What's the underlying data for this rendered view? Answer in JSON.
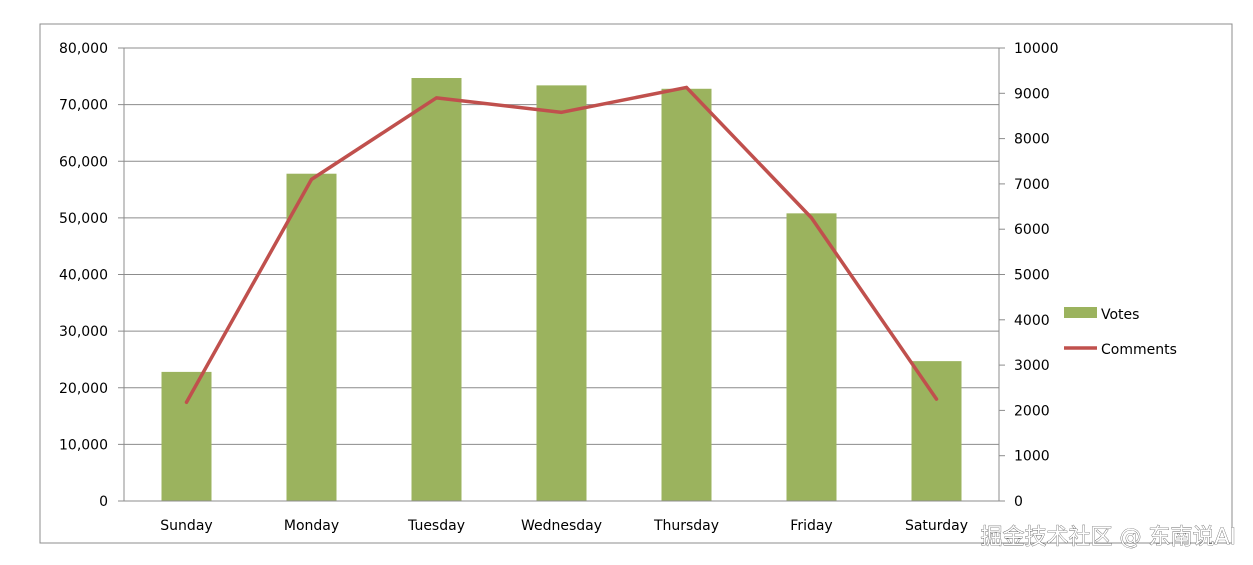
{
  "chart_data": {
    "type": "bar",
    "categories": [
      "Sunday",
      "Monday",
      "Tuesday",
      "Wednesday",
      "Thursday",
      "Friday",
      "Saturday"
    ],
    "series": [
      {
        "name": "Votes",
        "type": "bar",
        "axis": "left",
        "color": "#9BB35E",
        "values": [
          22800,
          57800,
          74700,
          73400,
          72800,
          50800,
          24700
        ]
      },
      {
        "name": "Comments",
        "type": "line",
        "axis": "right",
        "color": "#C0504D",
        "values": [
          2180,
          7100,
          8900,
          8580,
          9130,
          6250,
          2250
        ]
      }
    ],
    "y_left": {
      "min": 0,
      "max": 80000,
      "step": 10000,
      "ticks": [
        "0",
        "10,000",
        "20,000",
        "30,000",
        "40,000",
        "50,000",
        "60,000",
        "70,000",
        "80,000"
      ]
    },
    "y_right": {
      "min": 0,
      "max": 10000,
      "step": 1000,
      "ticks": [
        "0",
        "1000",
        "2000",
        "3000",
        "4000",
        "5000",
        "6000",
        "7000",
        "8000",
        "9000",
        "10000"
      ]
    },
    "grid": true,
    "legend": {
      "placement": "right",
      "entries": [
        "Votes",
        "Comments"
      ]
    }
  },
  "watermark": "掘金技术社区 @ 东南说AI"
}
